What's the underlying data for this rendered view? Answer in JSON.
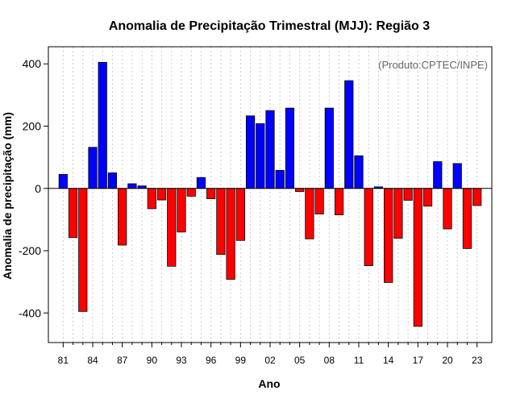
{
  "chart_data": {
    "type": "bar",
    "title": "Anomalia de Precipitação Trimestral (MJJ): Região 3",
    "xlabel": "Ano",
    "ylabel": "Anomalia de precipitação (mm)",
    "annotation": "(Produto:CPTEC/INPE)",
    "ylim": [
      -495,
      455
    ],
    "yticks": [
      400,
      200,
      0,
      -200,
      -400
    ],
    "ytick_labels": [
      "400",
      "200",
      "0",
      "-200",
      "-400"
    ],
    "years": [
      1981,
      1982,
      1983,
      1984,
      1985,
      1986,
      1987,
      1988,
      1989,
      1990,
      1991,
      1992,
      1993,
      1994,
      1995,
      1996,
      1997,
      1998,
      1999,
      2000,
      2001,
      2002,
      2003,
      2004,
      2005,
      2006,
      2007,
      2008,
      2009,
      2010,
      2011,
      2012,
      2013,
      2014,
      2015,
      2016,
      2017,
      2018,
      2019,
      2020,
      2021,
      2022,
      2023
    ],
    "values": [
      45,
      -158,
      -395,
      132,
      405,
      50,
      -182,
      15,
      8,
      -65,
      -37,
      -250,
      -140,
      -25,
      35,
      -33,
      -212,
      -292,
      -167,
      233,
      208,
      250,
      58,
      258,
      -10,
      -162,
      -82,
      258,
      -85,
      346,
      105,
      -248,
      5,
      -302,
      -160,
      -38,
      -443,
      -57,
      86,
      -130,
      80,
      -193,
      -55
    ],
    "x_tick_labels": [
      "81",
      "84",
      "87",
      "90",
      "93",
      "96",
      "99",
      "02",
      "05",
      "08",
      "11",
      "14",
      "17",
      "20",
      "23"
    ],
    "x_tick_years": [
      1981,
      1984,
      1987,
      1990,
      1993,
      1996,
      1999,
      2002,
      2005,
      2008,
      2011,
      2014,
      2017,
      2020,
      2023
    ],
    "positive_color": "#0000ff",
    "negative_color": "#ff0000",
    "grid": true
  }
}
